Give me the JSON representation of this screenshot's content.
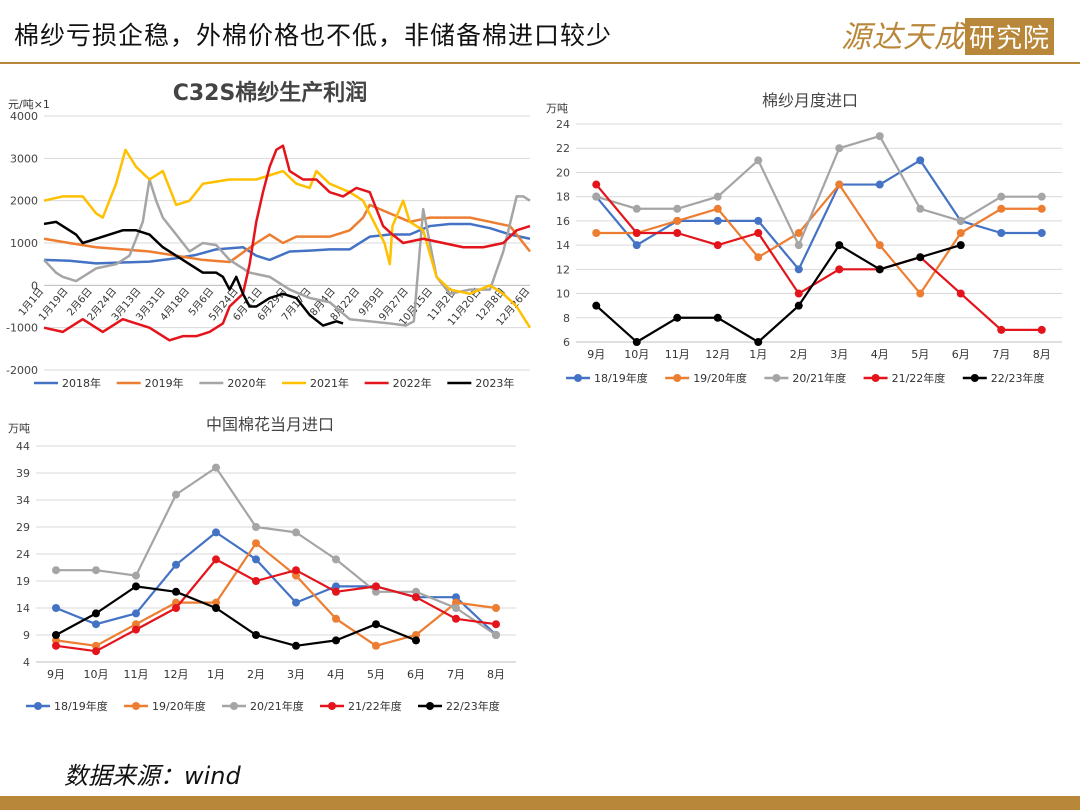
{
  "page": {
    "title": "棉纱亏损企稳，外棉价格也不低，非储备棉进口较少",
    "logo_text": "源达",
    "logo_text2": "天成",
    "logo_box": "研究院",
    "source": "数据来源：wind"
  },
  "colors": {
    "accent": "#b8873a",
    "s2018": "#4472c4",
    "s2019": "#ed7d31",
    "s2020": "#a5a5a5",
    "s2021": "#ffc000",
    "s2022": "#e3141b",
    "s2023": "#000000"
  },
  "chart_data": [
    {
      "id": "profit",
      "type": "line",
      "title": "C32S棉纱生产利润",
      "ylabel": "元/吨×1",
      "ylim": [
        -2000,
        4000
      ],
      "yticks": [
        -2000,
        -1000,
        0,
        1000,
        2000,
        3000,
        4000
      ],
      "x_tick_labels": [
        "1月1日",
        "1月19日",
        "2月6日",
        "2月24日",
        "3月13日",
        "3月31日",
        "4月18日",
        "5月6日",
        "5月24日",
        "6月11日",
        "6月29日",
        "7月17日",
        "8月4日",
        "8月22日",
        "9月9日",
        "9月27日",
        "10月15日",
        "11月2日",
        "11月20日",
        "12月8日",
        "12月26日"
      ],
      "xlim": [
        1,
        365
      ],
      "grid": true,
      "legend": "bottom",
      "series": [
        {
          "name": "2018年",
          "color": "#4472c4",
          "x": [
            1,
            20,
            40,
            60,
            80,
            100,
            115,
            130,
            150,
            160,
            170,
            185,
            200,
            215,
            230,
            245,
            260,
            275,
            290,
            305,
            320,
            335,
            350,
            365
          ],
          "y": [
            600,
            580,
            520,
            540,
            560,
            640,
            720,
            850,
            900,
            700,
            600,
            800,
            820,
            850,
            850,
            1150,
            1200,
            1200,
            1400,
            1450,
            1450,
            1350,
            1200,
            1100
          ]
        },
        {
          "name": "2019年",
          "color": "#ed7d31",
          "x": [
            1,
            20,
            40,
            60,
            80,
            100,
            120,
            140,
            160,
            170,
            180,
            190,
            200,
            215,
            230,
            240,
            245,
            260,
            275,
            290,
            305,
            320,
            335,
            350,
            365
          ],
          "y": [
            1100,
            1000,
            900,
            850,
            800,
            700,
            600,
            550,
            1000,
            1200,
            1000,
            1150,
            1150,
            1150,
            1300,
            1600,
            1900,
            1700,
            1500,
            1600,
            1600,
            1600,
            1500,
            1400,
            800
          ]
        },
        {
          "name": "2020年",
          "color": "#a5a5a5",
          "x": [
            1,
            10,
            15,
            25,
            40,
            55,
            65,
            75,
            80,
            85,
            90,
            100,
            110,
            120,
            130,
            140,
            155,
            170,
            185,
            200,
            215,
            230,
            245,
            260,
            272,
            278,
            285,
            295,
            305,
            320,
            335,
            345,
            355,
            360,
            365
          ],
          "y": [
            600,
            300,
            200,
            100,
            400,
            500,
            700,
            1500,
            2500,
            2000,
            1600,
            1200,
            800,
            1000,
            950,
            600,
            300,
            200,
            -100,
            -300,
            -400,
            -800,
            -850,
            -900,
            -950,
            -850,
            1800,
            200,
            -200,
            -100,
            -100,
            800,
            2100,
            2100,
            2000
          ]
        },
        {
          "name": "2021年",
          "color": "#ffc000",
          "x": [
            1,
            15,
            30,
            40,
            45,
            55,
            62,
            70,
            80,
            90,
            100,
            110,
            120,
            140,
            160,
            180,
            190,
            200,
            205,
            215,
            230,
            240,
            248,
            256,
            260,
            262,
            270,
            275,
            285,
            295,
            305,
            320,
            335,
            345,
            355,
            365
          ],
          "y": [
            2000,
            2100,
            2100,
            1700,
            1600,
            2400,
            3200,
            2800,
            2500,
            2700,
            1900,
            2000,
            2400,
            2500,
            2500,
            2700,
            2400,
            2300,
            2700,
            2400,
            2200,
            2000,
            1500,
            1000,
            500,
            1400,
            2000,
            1500,
            1300,
            200,
            -100,
            -200,
            0,
            -200,
            -500,
            -1000
          ]
        },
        {
          "name": "2022年",
          "color": "#e3141b",
          "x": [
            1,
            15,
            30,
            45,
            60,
            80,
            95,
            105,
            115,
            125,
            135,
            140,
            150,
            155,
            160,
            165,
            170,
            175,
            180,
            185,
            195,
            205,
            215,
            225,
            235,
            245,
            255,
            262,
            270,
            285,
            300,
            315,
            330,
            345,
            355,
            365
          ],
          "y": [
            -1000,
            -1100,
            -800,
            -1100,
            -800,
            -1000,
            -1300,
            -1200,
            -1200,
            -1100,
            -900,
            -500,
            -200,
            500,
            1500,
            2200,
            2800,
            3200,
            3300,
            2700,
            2500,
            2500,
            2200,
            2100,
            2300,
            2200,
            1400,
            1200,
            1000,
            1100,
            1000,
            900,
            900,
            1000,
            1300,
            1400
          ]
        },
        {
          "name": "2023年",
          "color": "#000000",
          "x": [
            1,
            10,
            25,
            30,
            40,
            50,
            60,
            70,
            80,
            90,
            100,
            110,
            120,
            130,
            135,
            140,
            145,
            150,
            155,
            160,
            170,
            180,
            190,
            200,
            210,
            220,
            225
          ],
          "y": [
            1450,
            1500,
            1200,
            1000,
            1100,
            1200,
            1300,
            1300,
            1200,
            900,
            700,
            500,
            300,
            300,
            200,
            -100,
            200,
            -200,
            -500,
            -500,
            -300,
            -200,
            -300,
            -700,
            -950,
            -850,
            -900
          ]
        }
      ]
    },
    {
      "id": "yarn",
      "type": "line",
      "title": "棉纱月度进口",
      "ylabel": "万吨",
      "ylim": [
        6,
        24
      ],
      "yticks": [
        6,
        8,
        10,
        12,
        14,
        16,
        18,
        20,
        22,
        24
      ],
      "categories": [
        "9月",
        "10月",
        "11月",
        "12月",
        "1月",
        "2月",
        "3月",
        "4月",
        "5月",
        "6月",
        "7月",
        "8月"
      ],
      "grid": true,
      "legend": "bottom",
      "series": [
        {
          "name": "18/19年度",
          "color": "#4472c4",
          "values": [
            18,
            14,
            16,
            16,
            16,
            12,
            19,
            19,
            21,
            16,
            15,
            15
          ]
        },
        {
          "name": "19/20年度",
          "color": "#ed7d31",
          "values": [
            15,
            15,
            16,
            17,
            13,
            15,
            19,
            14,
            10,
            15,
            17,
            17
          ]
        },
        {
          "name": "20/21年度",
          "color": "#a5a5a5",
          "values": [
            18,
            17,
            17,
            18,
            21,
            14,
            22,
            23,
            17,
            16,
            18,
            18
          ]
        },
        {
          "name": "21/22年度",
          "color": "#e3141b",
          "values": [
            19,
            15,
            15,
            14,
            15,
            10,
            12,
            12,
            13,
            10,
            7,
            7
          ]
        },
        {
          "name": "22/23年度",
          "color": "#000000",
          "values": [
            9,
            6,
            8,
            8,
            6,
            9,
            14,
            12,
            13,
            14,
            null,
            null
          ]
        }
      ]
    },
    {
      "id": "cotton",
      "type": "line",
      "title": "中国棉花当月进口",
      "ylabel": "万吨",
      "ylim": [
        4,
        44
      ],
      "yticks": [
        4,
        9,
        14,
        19,
        24,
        29,
        34,
        39,
        44
      ],
      "categories": [
        "9月",
        "10月",
        "11月",
        "12月",
        "1月",
        "2月",
        "3月",
        "4月",
        "5月",
        "6月",
        "7月",
        "8月"
      ],
      "grid": true,
      "legend": "bottom",
      "series": [
        {
          "name": "18/19年度",
          "color": "#4472c4",
          "values": [
            14,
            11,
            13,
            22,
            28,
            23,
            15,
            18,
            18,
            16,
            16,
            9
          ]
        },
        {
          "name": "19/20年度",
          "color": "#ed7d31",
          "values": [
            8,
            7,
            11,
            15,
            15,
            26,
            20,
            12,
            7,
            9,
            15,
            14
          ]
        },
        {
          "name": "20/21年度",
          "color": "#a5a5a5",
          "values": [
            21,
            21,
            20,
            35,
            40,
            29,
            28,
            23,
            17,
            17,
            14,
            9
          ]
        },
        {
          "name": "21/22年度",
          "color": "#e3141b",
          "values": [
            7,
            6,
            10,
            14,
            23,
            19,
            21,
            17,
            18,
            16,
            12,
            11
          ]
        },
        {
          "name": "22/23年度",
          "color": "#000000",
          "values": [
            9,
            13,
            18,
            17,
            14,
            9,
            7,
            8,
            11,
            8,
            null,
            null
          ]
        }
      ]
    }
  ]
}
